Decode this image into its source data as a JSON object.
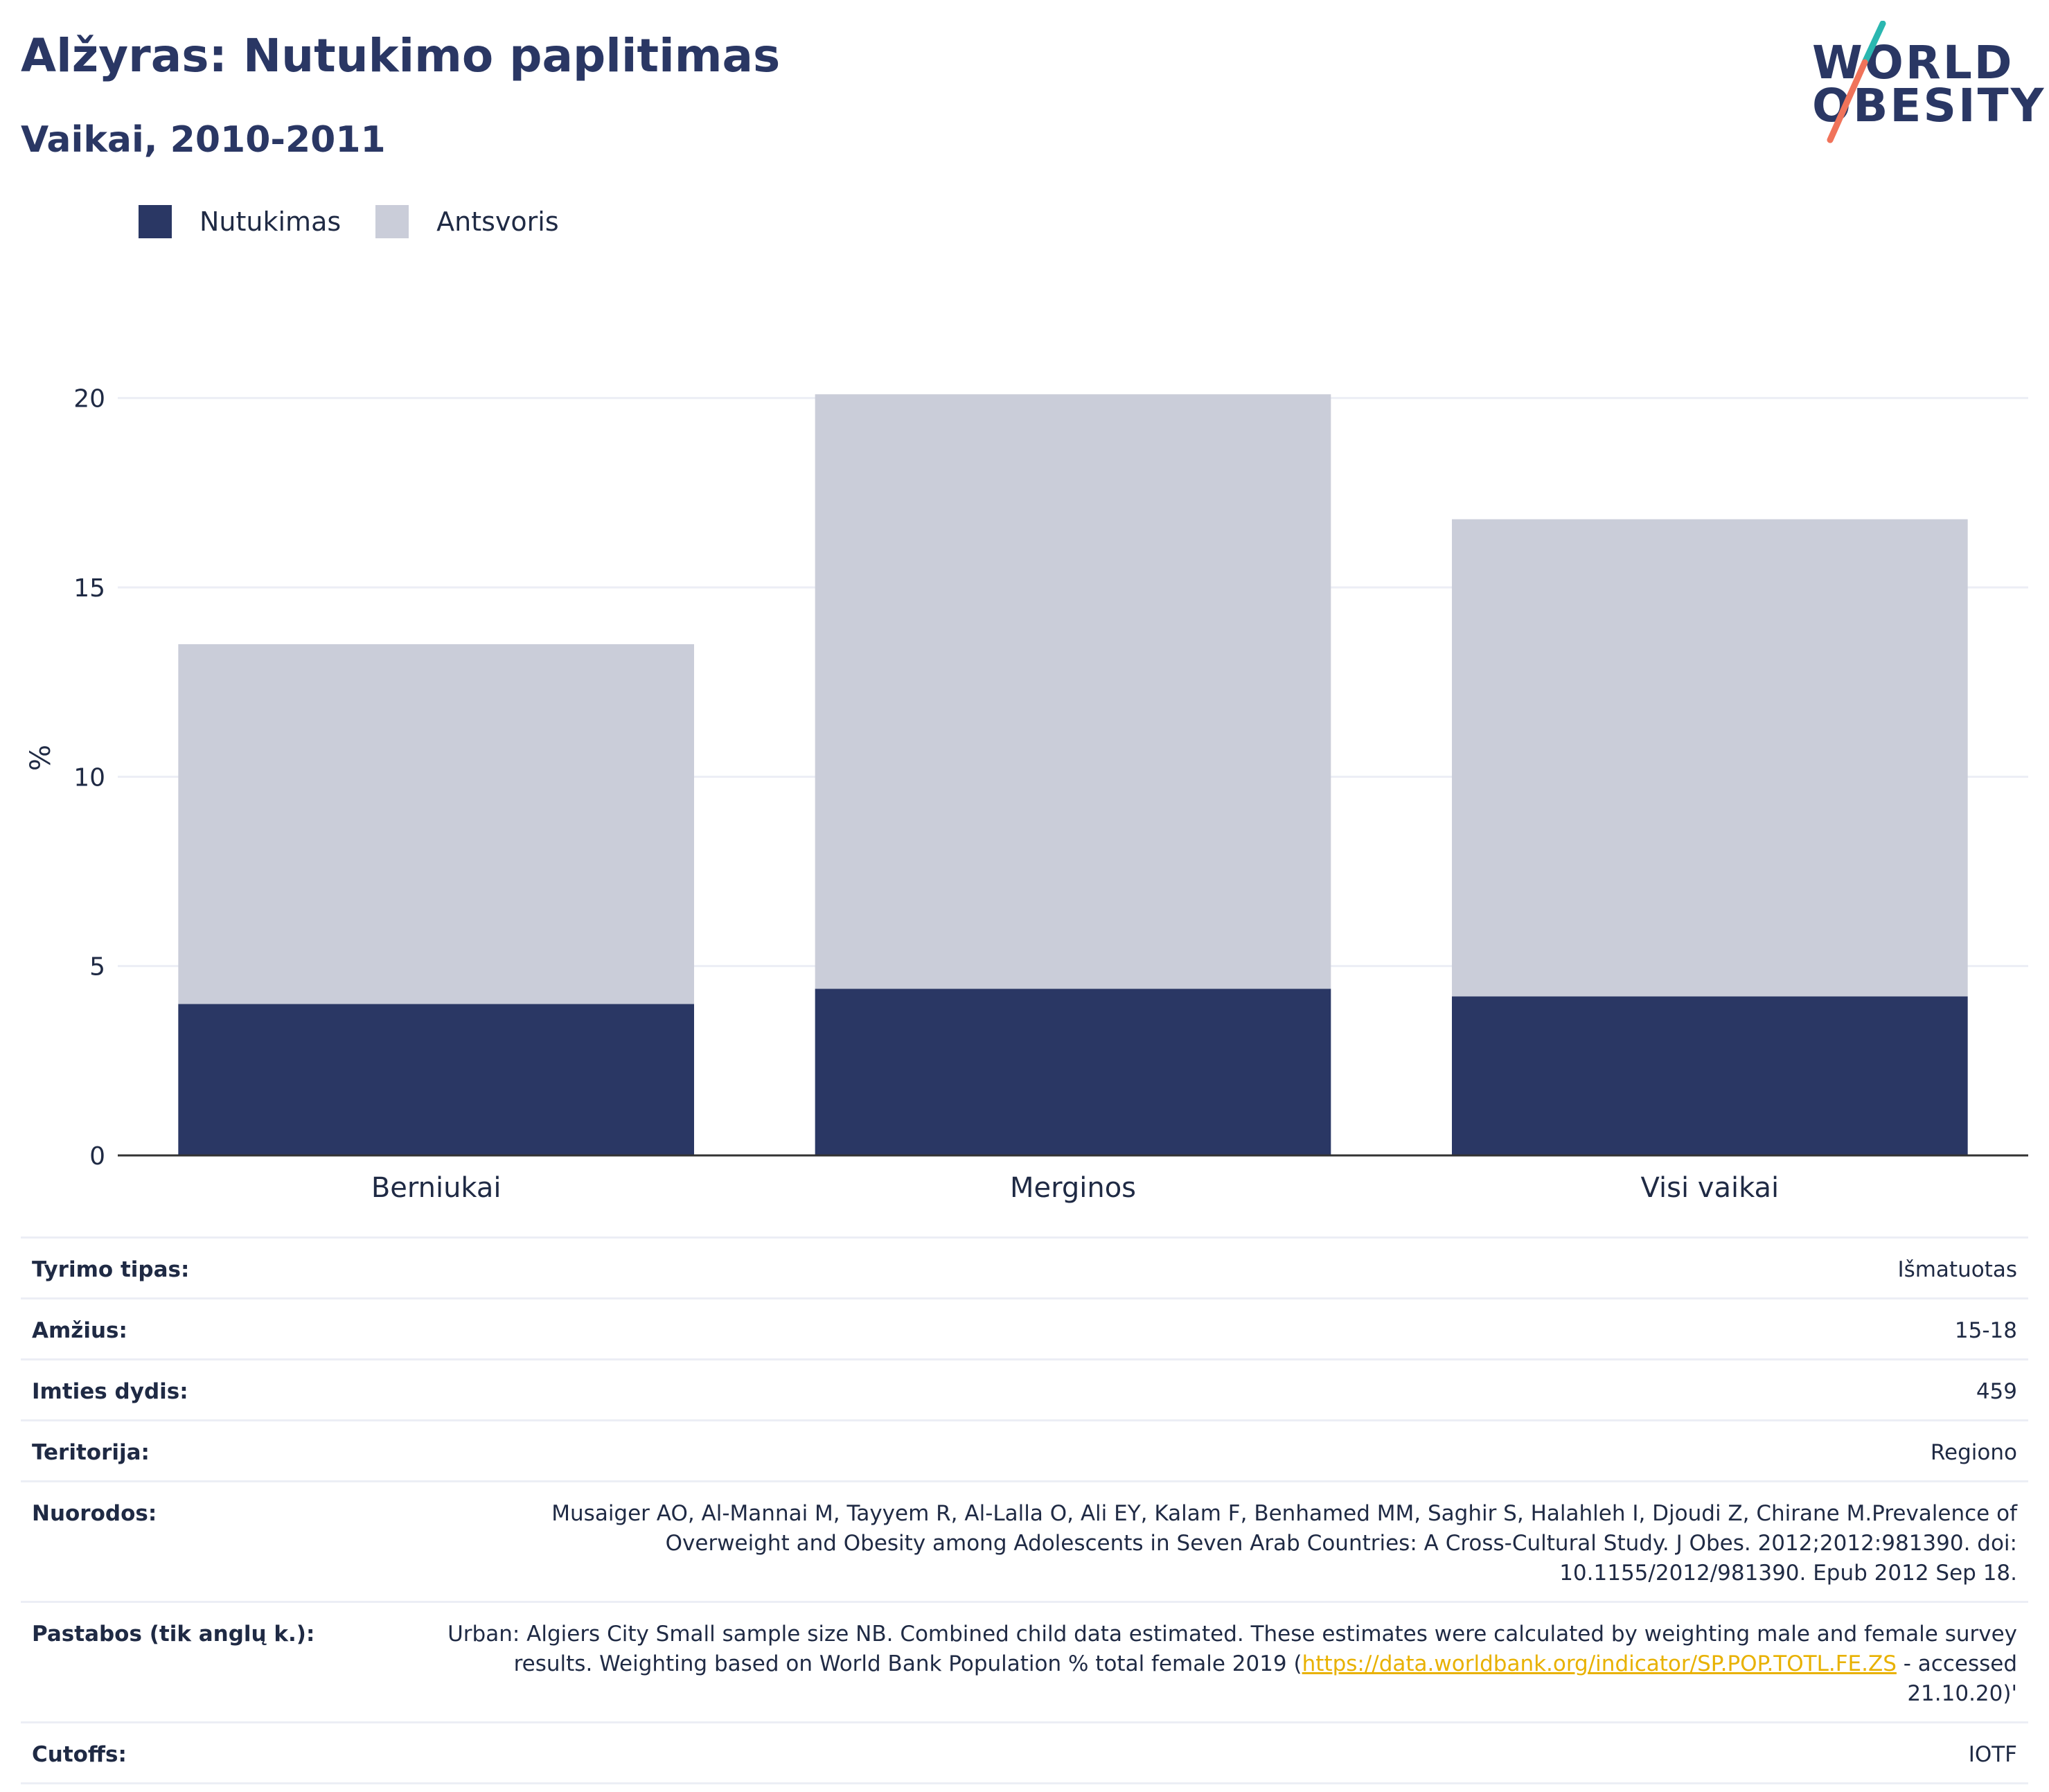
{
  "header": {
    "title": "Alžyras: Nutukimo paplitimas",
    "subtitle": "Vaikai, 2010-2011",
    "logo_line1": "WORLD",
    "logo_line2": "OBESITY"
  },
  "colors": {
    "obesity": "#2a3764",
    "overweight": "#cacdd9",
    "logo_teal": "#2ab7b0",
    "logo_coral": "#f0735a",
    "link": "#e8b100",
    "grid": "#eceef5"
  },
  "chart_data": {
    "type": "bar",
    "stacked": true,
    "categories": [
      "Berniukai",
      "Merginos",
      "Visi vaikai"
    ],
    "series": [
      {
        "name": "Nutukimas",
        "values": [
          4.0,
          4.4,
          4.2
        ]
      },
      {
        "name": "Antsvoris",
        "values": [
          9.5,
          15.7,
          12.6
        ]
      }
    ],
    "totals": [
      13.5,
      20.1,
      16.8
    ],
    "ylabel": "%",
    "xlabel": "",
    "ylim": [
      0,
      21
    ],
    "yticks": [
      0,
      5,
      10,
      15,
      20
    ],
    "grid": true,
    "legend_position": "top-left"
  },
  "meta": {
    "rows": [
      {
        "label": "Tyrimo tipas:",
        "value": "Išmatuotas"
      },
      {
        "label": "Amžius:",
        "value": "15-18"
      },
      {
        "label": "Imties dydis:",
        "value": "459"
      },
      {
        "label": "Teritorija:",
        "value": "Regiono"
      },
      {
        "label": "Nuorodos:",
        "value": "Musaiger AO, Al-Mannai M, Tayyem R, Al-Lalla O, Ali EY, Kalam F, Benhamed MM, Saghir S, Halahleh I, Djoudi Z, Chirane M.Prevalence of Overweight and Obesity among Adolescents in Seven Arab Countries: A Cross-Cultural Study. J Obes. 2012;2012:981390. doi: 10.1155/2012/981390. Epub 2012 Sep 18."
      },
      {
        "label": "Pastabos (tik anglų k.):",
        "value_before": "Urban: Algiers City Small sample size NB. Combined child data estimated. These estimates were calculated by weighting male and female survey results. Weighting based on World Bank Population % total female 2019 (",
        "link": "https://data.worldbank.org/indicator/SP.POP.TOTL.FE.ZS",
        "value_after": " - accessed 21.10.20)'"
      },
      {
        "label": "Cutoffs:",
        "value": "IOTF"
      }
    ]
  }
}
